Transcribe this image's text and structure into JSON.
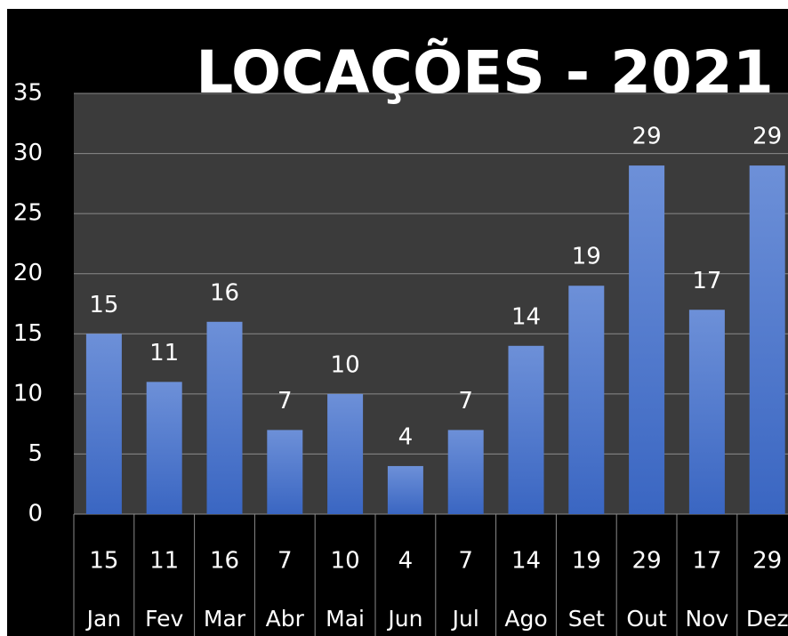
{
  "chart_data": {
    "type": "bar",
    "title": "LOCAÇÕES - 2021",
    "categories": [
      "Jan",
      "Fev",
      "Mar",
      "Abr",
      "Mai",
      "Jun",
      "Jul",
      "Ago",
      "Set",
      "Out",
      "Nov",
      "Dez"
    ],
    "values": [
      15,
      11,
      16,
      7,
      10,
      4,
      7,
      14,
      19,
      29,
      17,
      29
    ],
    "color": "#4f7ad0",
    "ylim": [
      0,
      35
    ],
    "yticks": [
      0,
      5,
      10,
      15,
      20,
      25,
      30,
      35
    ],
    "grid": true
  }
}
